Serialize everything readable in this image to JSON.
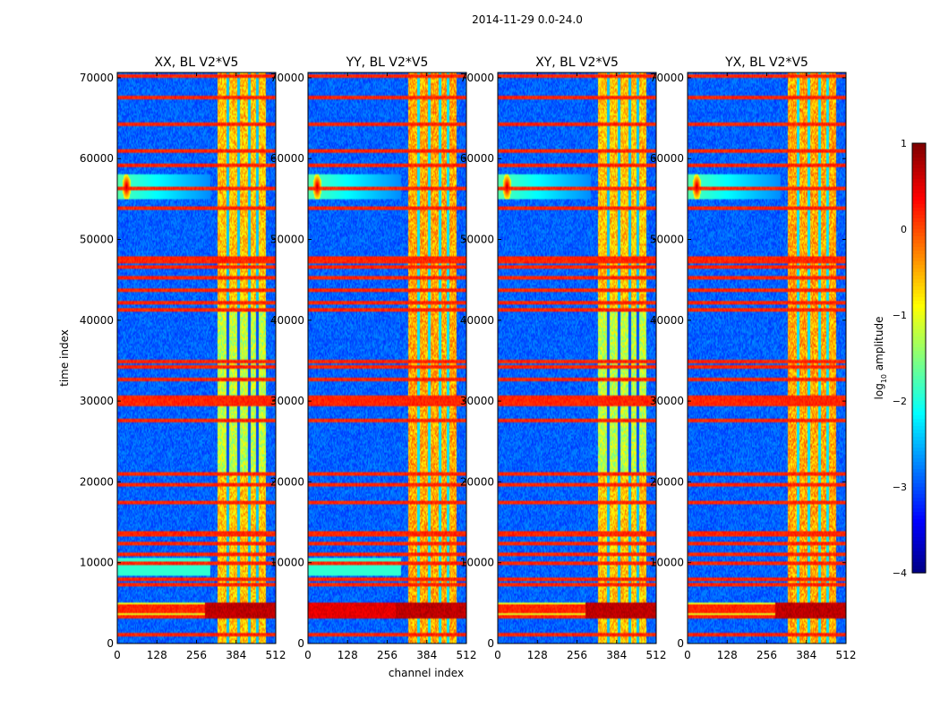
{
  "chart_data": {
    "type": "heatmap",
    "suptitle": "2014-11-29 0.0-24.0",
    "xlabel": "channel index",
    "ylabel": "time index",
    "xlim": [
      0,
      512
    ],
    "ylim": [
      0,
      70656
    ],
    "xticks": [
      0,
      128,
      256,
      384,
      512
    ],
    "yticks": [
      0,
      10000,
      20000,
      30000,
      40000,
      50000,
      60000,
      70000
    ],
    "panels": [
      {
        "title": "XX, BL V2*V5",
        "polarization": "XX"
      },
      {
        "title": "YY, BL V2*V5",
        "polarization": "YY"
      },
      {
        "title": "XY, BL V2*V5",
        "polarization": "XY"
      },
      {
        "title": "YX, BL V2*V5",
        "polarization": "YX"
      }
    ],
    "colorbar": {
      "label": "log",
      "label_sub": "10",
      "label_rest": " amplitude",
      "range": [
        -4,
        1
      ],
      "ticks": [
        {
          "v": 1,
          "t": "1"
        },
        {
          "v": 0,
          "t": "0"
        },
        {
          "v": -1,
          "t": "−1"
        },
        {
          "v": -2,
          "t": "−2"
        },
        {
          "v": -3,
          "t": "−3"
        },
        {
          "v": -4,
          "t": "−4"
        }
      ],
      "colormap": "jet"
    },
    "features": {
      "background_level": -2.9,
      "bright_channel_band": [
        324,
        480
      ],
      "bright_band_level": -0.6,
      "band_subcolumn_gaps": [
        358,
        392,
        426,
        452
      ],
      "rfi_time_rows": [
        1200,
        3400,
        3900,
        4300,
        4700,
        7300,
        7900,
        9900,
        11000,
        12300,
        13400,
        13800,
        17500,
        19700,
        21000,
        27500,
        29600,
        30100,
        30400,
        32600,
        34300,
        34900,
        41300,
        42200,
        43800,
        45200,
        46500,
        47200,
        47800,
        53800,
        56300,
        59100,
        60900,
        64200,
        67600,
        70300
      ],
      "rfi_row_level": 0.2,
      "strong_low_band": [
        3000,
        5000
      ],
      "strong_low_band_level": 0.7,
      "spot_event": {
        "channel": 30,
        "time": 56500,
        "level": 0.8
      },
      "spot_event_2": {
        "channel": 470,
        "time": 61000,
        "level": 0.3
      }
    }
  }
}
